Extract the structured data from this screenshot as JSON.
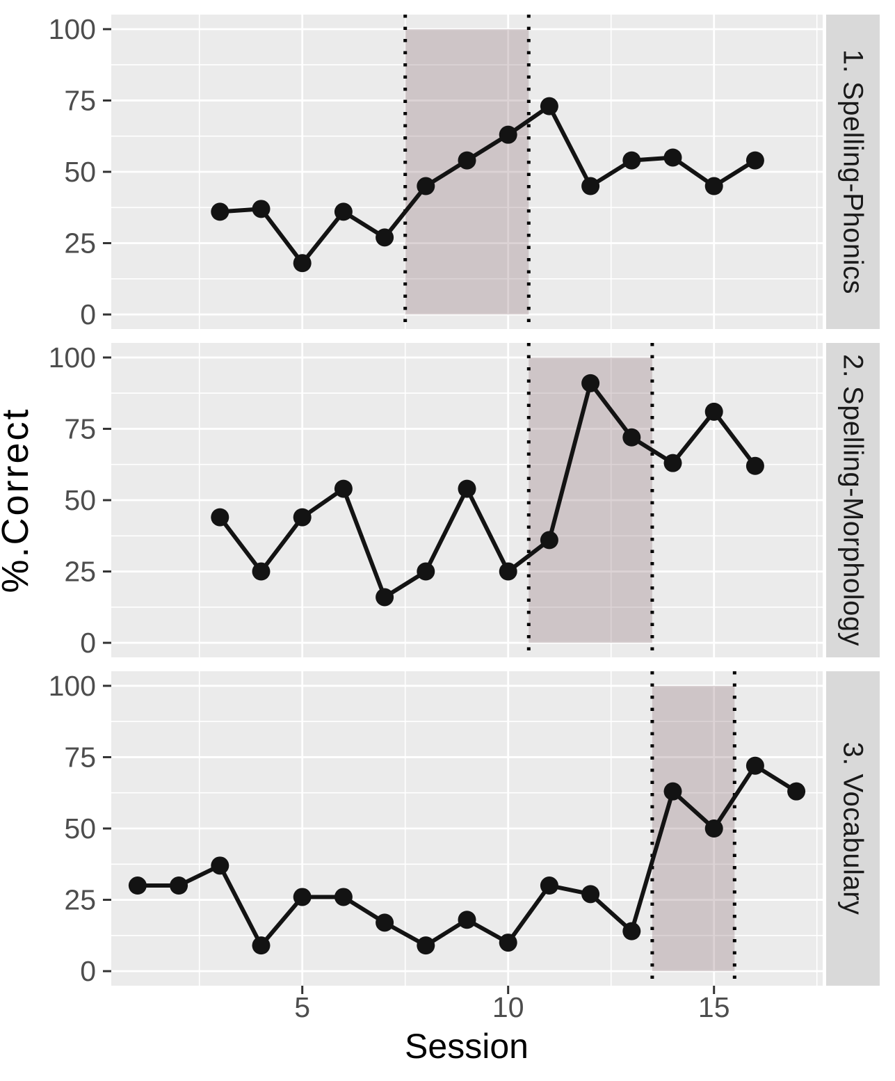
{
  "figure": {
    "x_label": "Session",
    "y_label": "%.Correct",
    "x_tick_labels": [
      "5",
      "10",
      "15"
    ],
    "x_tick_values": [
      5,
      10,
      15
    ],
    "y_tick_labels": [
      "0",
      "25",
      "50",
      "75",
      "100"
    ],
    "y_tick_values": [
      0,
      25,
      50,
      75,
      100
    ]
  },
  "chart_data": [
    {
      "type": "line",
      "panel_label": "1. Spelling-Phonics",
      "x": [
        3,
        4,
        5,
        6,
        7,
        8,
        9,
        10,
        11,
        12,
        13,
        14,
        15,
        16
      ],
      "y": [
        36,
        37,
        18,
        36,
        27,
        45,
        54,
        63,
        73,
        45,
        54,
        55,
        45,
        54
      ],
      "phase_shade": {
        "xmin": 7.5,
        "xmax": 10.5,
        "ymin": 0,
        "ymax": 100
      },
      "phase_lines": [
        7.5,
        10.5
      ]
    },
    {
      "type": "line",
      "panel_label": "2. Spelling-Morphology",
      "x": [
        3,
        4,
        5,
        6,
        7,
        8,
        9,
        10,
        11,
        12,
        13,
        14,
        15,
        16
      ],
      "y": [
        44,
        25,
        44,
        54,
        16,
        25,
        54,
        25,
        36,
        91,
        72,
        63,
        81,
        62
      ],
      "phase_shade": {
        "xmin": 10.5,
        "xmax": 13.5,
        "ymin": 0,
        "ymax": 100
      },
      "phase_lines": [
        10.5,
        13.5
      ]
    },
    {
      "type": "line",
      "panel_label": "3. Vocabulary",
      "x": [
        1,
        2,
        3,
        4,
        5,
        6,
        7,
        8,
        9,
        10,
        11,
        12,
        13,
        14,
        15,
        16,
        17
      ],
      "y": [
        30,
        30,
        37,
        9,
        26,
        26,
        17,
        9,
        18,
        10,
        30,
        27,
        14,
        63,
        50,
        72,
        63
      ],
      "phase_shade": {
        "xmin": 13.5,
        "xmax": 15.5,
        "ymin": 0,
        "ymax": 100
      },
      "phase_lines": [
        13.5,
        15.5
      ]
    }
  ],
  "axes": {
    "x_range": [
      0.36,
      17.64
    ],
    "y_range": [
      -5.1,
      105.1
    ],
    "x_minor_breaks": [
      2.5,
      7.5,
      12.5,
      17.5
    ],
    "y_minor_breaks": [
      12.5,
      37.5,
      62.5,
      87.5
    ],
    "grid": true,
    "legend": "none"
  },
  "colors": {
    "panel_bg": "#EBEBEB",
    "gridline": "#FFFFFF",
    "shade_fill": "#8B6C73",
    "shade_opacity": 0.3,
    "phase_line": "#000000",
    "series_line": "#131313",
    "point_fill": "#131313",
    "strip_bg": "#D9D9D9",
    "strip_text": "#1A1A1A",
    "tick_label": "#4D4D4D",
    "tick_mark": "#333333",
    "axis_title": "#000000"
  }
}
